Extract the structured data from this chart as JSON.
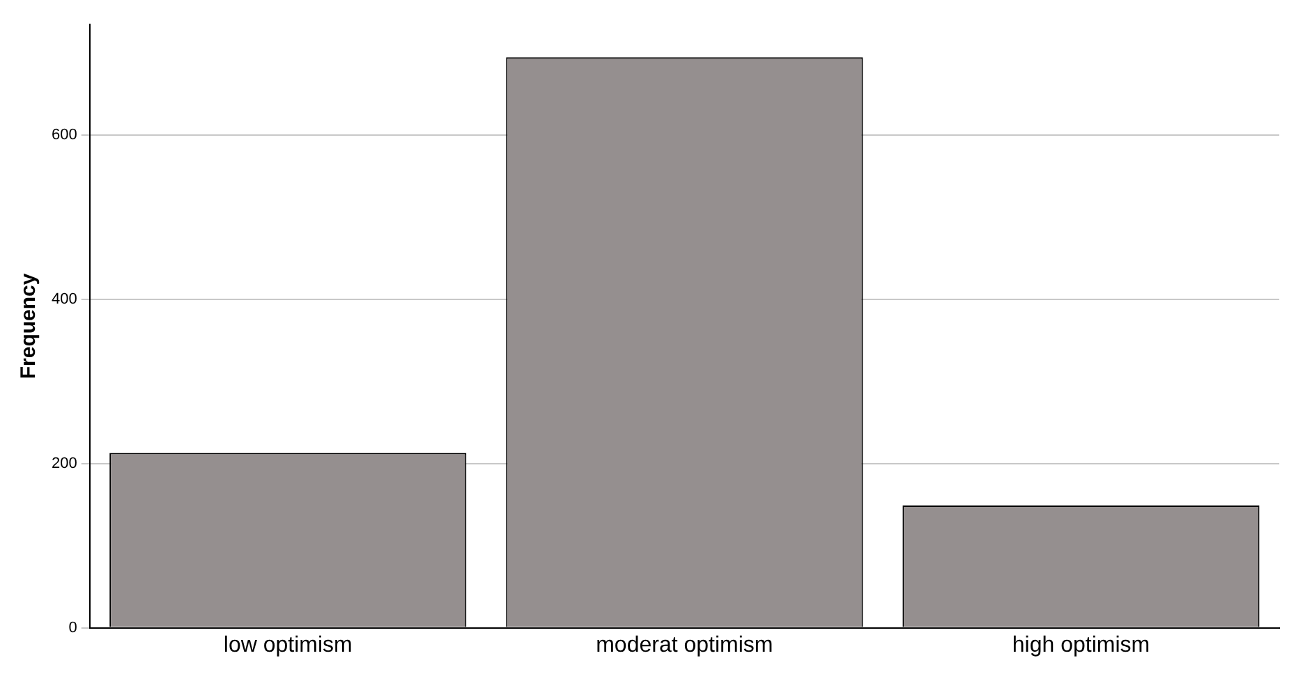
{
  "chart_data": {
    "type": "bar",
    "ylabel": "Frequency",
    "categories": [
      "low optimism",
      "moderat optimism",
      "high optimism"
    ],
    "values": [
      213,
      695,
      149
    ],
    "color": "#958f8f",
    "ylim": [
      0,
      735
    ],
    "yticks": [
      0,
      200,
      400,
      600
    ],
    "grid": "y"
  }
}
